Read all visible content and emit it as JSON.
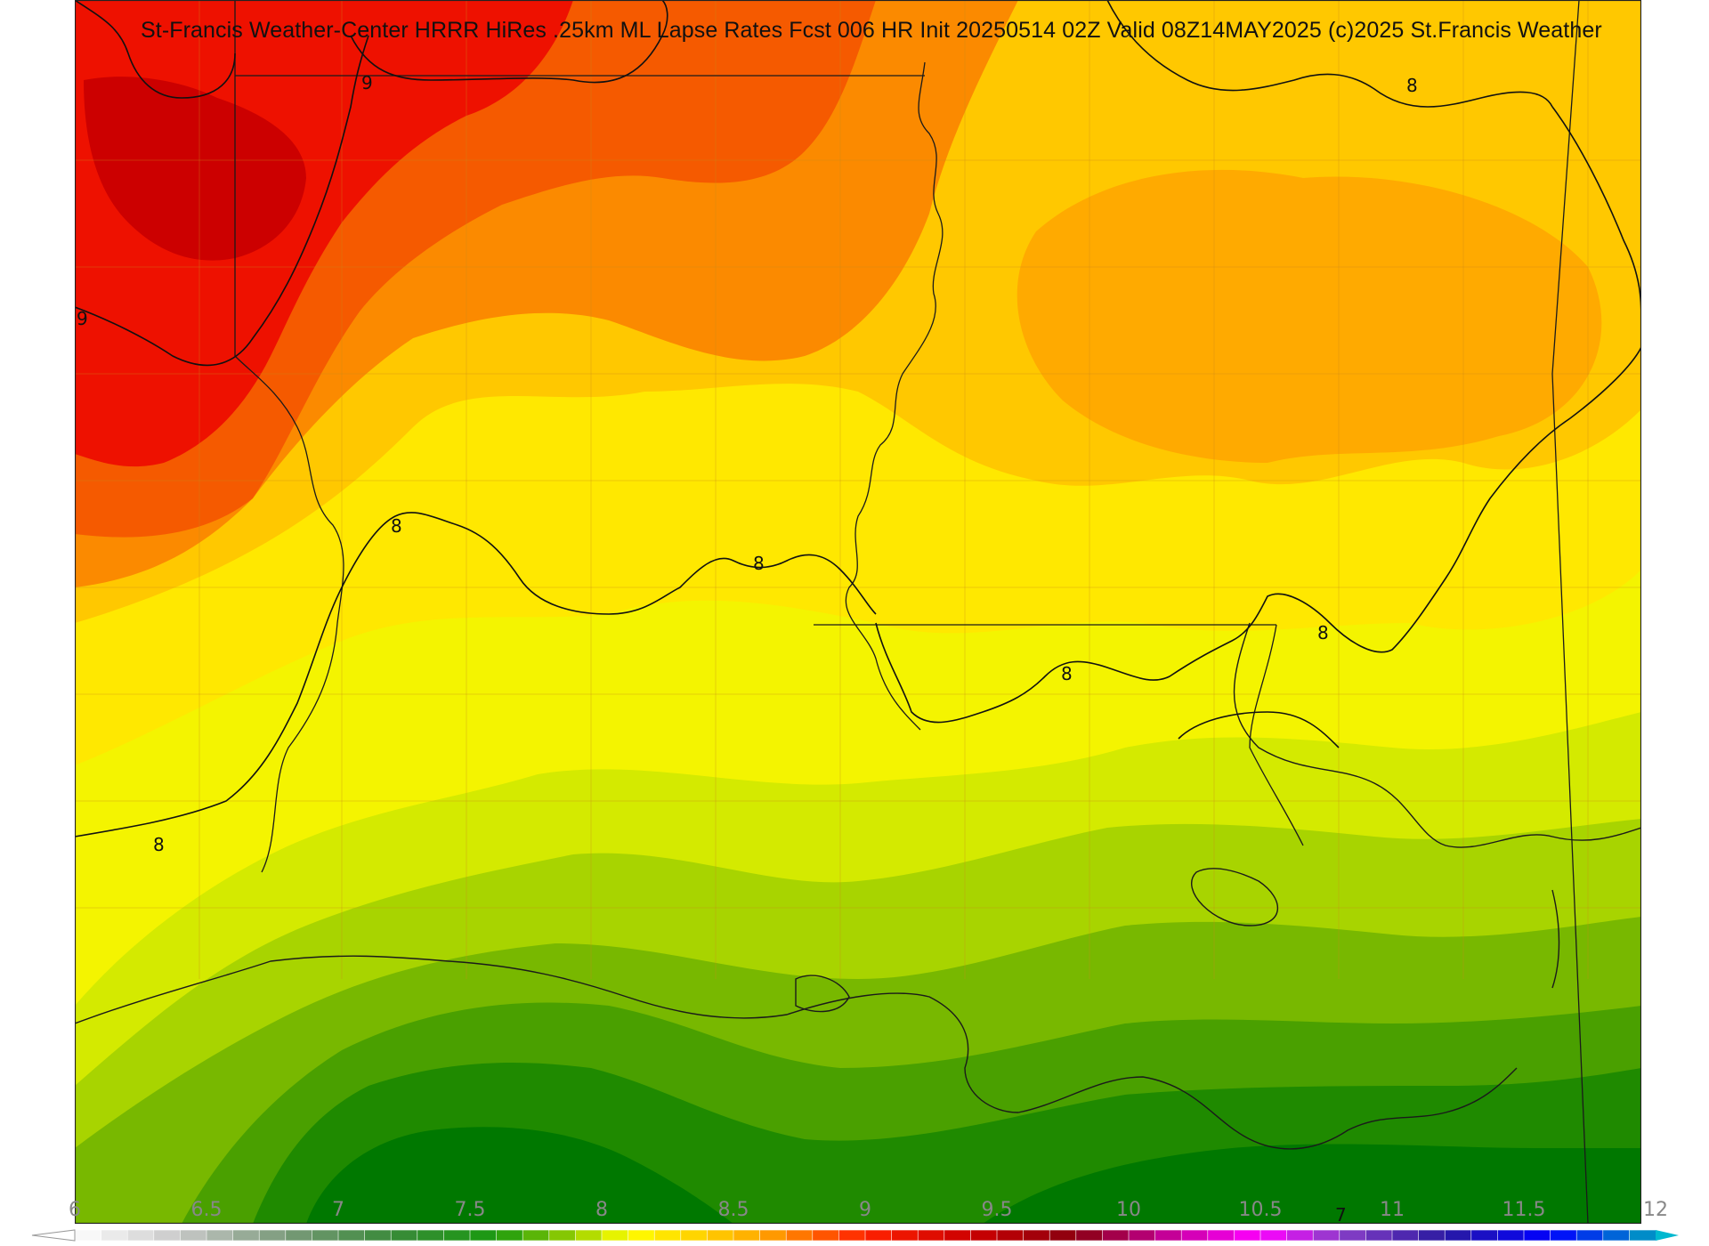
{
  "title": "St-Francis Weather-Center HRRR HiRes .25km ML Lapse Rates  Fcst 006 HR Init 20250514 02Z  Valid 08Z14MAY2025   (c)2025 St.Francis Weather",
  "field": {
    "colors": {
      "red_dark": "#cc0000",
      "red": "#ee1100",
      "orange_red": "#f55a00",
      "orange": "#fb8a00",
      "amber": "#ffaa00",
      "gold": "#ffc800",
      "yellow": "#ffe800",
      "lemon": "#f4f400",
      "yellow_green": "#d4ea00",
      "lime": "#a8d400",
      "green_light": "#78b800",
      "green": "#4aa000",
      "green_dark": "#1f8a00",
      "green_deep": "#007800"
    }
  },
  "contour_labels": [
    {
      "text": "9"
    },
    {
      "text": "9"
    },
    {
      "text": "8"
    },
    {
      "text": "8"
    },
    {
      "text": "8"
    },
    {
      "text": "8"
    },
    {
      "text": "8"
    },
    {
      "text": "8"
    },
    {
      "text": "8"
    },
    {
      "text": "7"
    }
  ],
  "colorbar": {
    "min": 6,
    "max": 12,
    "step": 0.1,
    "tick_labels": [
      "6",
      "6.5",
      "7",
      "7.5",
      "8",
      "8.5",
      "9",
      "9.5",
      "10",
      "10.5",
      "11",
      "11.5",
      "12"
    ]
  }
}
